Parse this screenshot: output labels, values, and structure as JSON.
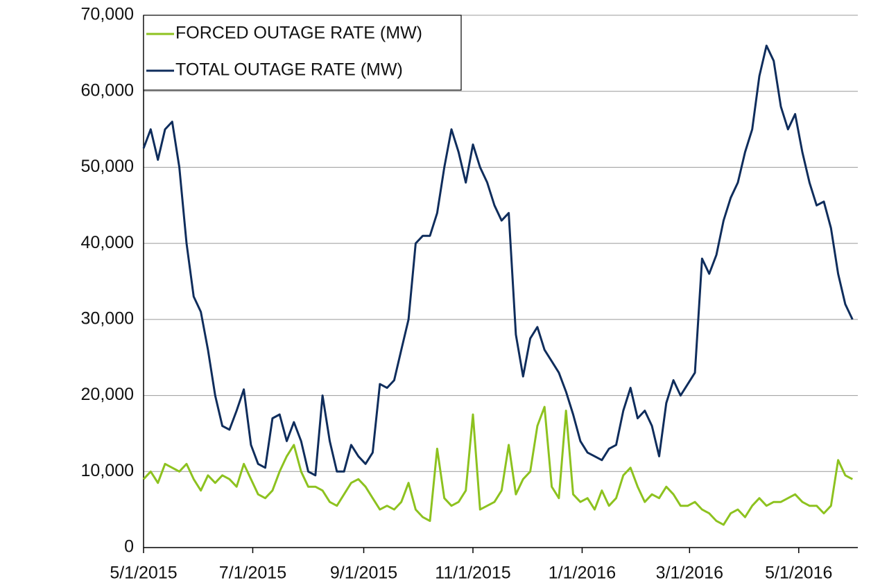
{
  "chart_data": {
    "type": "line",
    "x": [
      "5/1/2015",
      "5/5/2015",
      "5/9/2015",
      "5/13/2015",
      "5/17/2015",
      "5/21/2015",
      "5/25/2015",
      "5/29/2015",
      "6/2/2015",
      "6/6/2015",
      "6/10/2015",
      "6/14/2015",
      "6/18/2015",
      "6/22/2015",
      "6/26/2015",
      "6/30/2015",
      "7/4/2015",
      "7/8/2015",
      "7/12/2015",
      "7/16/2015",
      "7/20/2015",
      "7/24/2015",
      "7/28/2015",
      "8/1/2015",
      "8/5/2015",
      "8/9/2015",
      "8/13/2015",
      "8/17/2015",
      "8/21/2015",
      "8/25/2015",
      "8/29/2015",
      "9/2/2015",
      "9/6/2015",
      "9/10/2015",
      "9/14/2015",
      "9/18/2015",
      "9/22/2015",
      "9/26/2015",
      "9/30/2015",
      "10/4/2015",
      "10/8/2015",
      "10/12/2015",
      "10/16/2015",
      "10/20/2015",
      "10/24/2015",
      "10/28/2015",
      "11/1/2015",
      "11/5/2015",
      "11/9/2015",
      "11/13/2015",
      "11/17/2015",
      "11/21/2015",
      "11/25/2015",
      "11/29/2015",
      "12/3/2015",
      "12/7/2015",
      "12/11/2015",
      "12/15/2015",
      "12/19/2015",
      "12/23/2015",
      "12/27/2015",
      "12/31/2015",
      "1/4/2016",
      "1/8/2016",
      "1/12/2016",
      "1/16/2016",
      "1/20/2016",
      "1/24/2016",
      "1/28/2016",
      "2/1/2016",
      "2/5/2016",
      "2/9/2016",
      "2/13/2016",
      "2/17/2016",
      "2/21/2016",
      "2/25/2016",
      "2/29/2016",
      "3/4/2016",
      "3/8/2016",
      "3/12/2016",
      "3/16/2016",
      "3/20/2016",
      "3/24/2016",
      "3/28/2016",
      "4/1/2016",
      "4/5/2016",
      "4/9/2016",
      "4/13/2016",
      "4/17/2016",
      "4/21/2016",
      "4/25/2016",
      "4/29/2016",
      "5/3/2016",
      "5/7/2016",
      "5/11/2016",
      "5/15/2016",
      "5/19/2016",
      "5/23/2016",
      "5/27/2016",
      "5/31/2016"
    ],
    "series": [
      {
        "name": "FORCED OUTAGE RATE (MW)",
        "color": "#8dc21f",
        "values": [
          9000,
          10000,
          8500,
          11000,
          10500,
          10000,
          11000,
          9000,
          7500,
          9500,
          8500,
          9500,
          9000,
          8000,
          11000,
          9000,
          7000,
          6500,
          7500,
          10000,
          12000,
          13500,
          10000,
          8000,
          8000,
          7500,
          6000,
          5500,
          7000,
          8500,
          9000,
          8000,
          6500,
          5000,
          5500,
          5000,
          6000,
          8500,
          5000,
          4000,
          3500,
          13000,
          6500,
          5500,
          6000,
          7500,
          17500,
          5000,
          5500,
          6000,
          7500,
          13500,
          7000,
          9000,
          10000,
          16000,
          18500,
          8000,
          6500,
          18000,
          7000,
          6000,
          6500,
          5000,
          7500,
          5500,
          6500,
          9500,
          10500,
          8000,
          6000,
          7000,
          6500,
          8000,
          7000,
          5500,
          5500,
          6000,
          5000,
          4500,
          3500,
          3000,
          4500,
          5000,
          4000,
          5500,
          6500,
          5500,
          6000,
          6000,
          6500,
          7000,
          6000,
          5500,
          5500,
          4500,
          5500,
          11500,
          9500,
          9000
        ]
      },
      {
        "name": "TOTAL OUTAGE RATE (MW)",
        "color": "#0f2d5c",
        "values": [
          52500,
          55000,
          51000,
          55000,
          56000,
          50000,
          40000,
          33000,
          31000,
          26000,
          20000,
          16000,
          15500,
          18000,
          20800,
          13500,
          11000,
          10500,
          17000,
          17500,
          14000,
          16500,
          14000,
          10000,
          9500,
          20000,
          14000,
          10000,
          10000,
          13500,
          12000,
          11000,
          12500,
          21500,
          21000,
          22000,
          26000,
          30000,
          40000,
          41000,
          41000,
          44000,
          50000,
          55000,
          52000,
          48000,
          53000,
          50000,
          48000,
          45000,
          43000,
          44000,
          28000,
          22500,
          27500,
          29000,
          26000,
          24500,
          23000,
          20500,
          17500,
          14000,
          12500,
          12000,
          11500,
          13000,
          13500,
          18000,
          21000,
          17000,
          18000,
          16000,
          12000,
          19000,
          22000,
          20000,
          21500,
          23000,
          38000,
          36000,
          38500,
          43000,
          46000,
          48000,
          52000,
          55000,
          62000,
          66000,
          64000,
          58000,
          55000,
          57000,
          52000,
          48000,
          45000,
          45500,
          42000,
          36000,
          32000,
          30000
        ]
      }
    ],
    "xlim": [
      "5/1/2015",
      "6/3/2016"
    ],
    "xticks": [
      "5/1/2015",
      "7/1/2015",
      "9/1/2015",
      "11/1/2015",
      "1/1/2016",
      "3/1/2016",
      "5/1/2016"
    ],
    "ylim": [
      0,
      70000
    ],
    "yticks": [
      0,
      {
        "value": 10000,
        "label": "10,000"
      },
      {
        "value": 20000,
        "label": "20,000"
      },
      {
        "value": 30000,
        "label": "30,000"
      },
      {
        "value": 40000,
        "label": "40,000"
      },
      {
        "value": 50000,
        "label": "50,000"
      },
      {
        "value": 60000,
        "label": "60,000"
      },
      {
        "value": 70000,
        "label": "70,000"
      }
    ],
    "grid": true,
    "legend": "top-left"
  }
}
